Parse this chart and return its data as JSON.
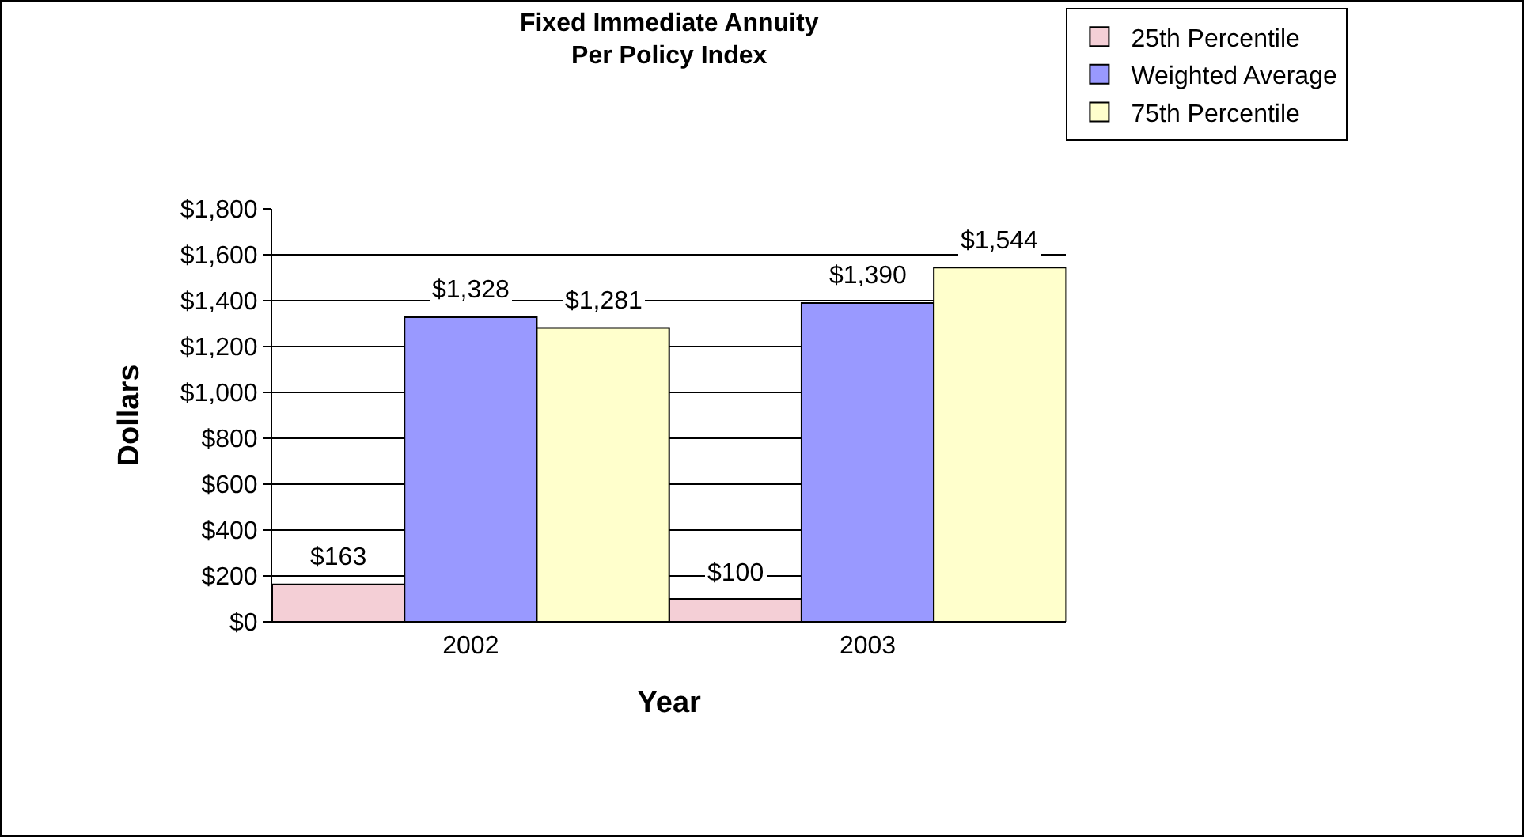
{
  "chart_data": {
    "type": "bar",
    "title": "Fixed Immediate Annuity\nPer Policy Index",
    "xlabel": "Year",
    "ylabel": "Dollars",
    "categories": [
      "2002",
      "2003"
    ],
    "series": [
      {
        "name": "25th Percentile",
        "color": "#f4cfd6",
        "values": [
          163,
          100
        ],
        "value_labels": [
          "$163",
          "$100"
        ]
      },
      {
        "name": "Weighted Average",
        "color": "#9999ff",
        "values": [
          1328,
          1390
        ],
        "value_labels": [
          "$1,328",
          "$1,390"
        ]
      },
      {
        "name": "75th Percentile",
        "color": "#ffffcc",
        "values": [
          1281,
          1544
        ],
        "value_labels": [
          "$1,281",
          "$1,544"
        ]
      }
    ],
    "ylim": [
      0,
      1800
    ],
    "yticks": [
      {
        "value": 0,
        "label": "$0"
      },
      {
        "value": 200,
        "label": "$200"
      },
      {
        "value": 400,
        "label": "$400"
      },
      {
        "value": 600,
        "label": "$600"
      },
      {
        "value": 800,
        "label": "$800"
      },
      {
        "value": 1000,
        "label": "$1,000"
      },
      {
        "value": 1200,
        "label": "$1,200"
      },
      {
        "value": 1400,
        "label": "$1,400"
      },
      {
        "value": 1600,
        "label": "$1,600"
      },
      {
        "value": 1800,
        "label": "$1,800"
      }
    ],
    "grid": "y",
    "legend": "top right"
  }
}
